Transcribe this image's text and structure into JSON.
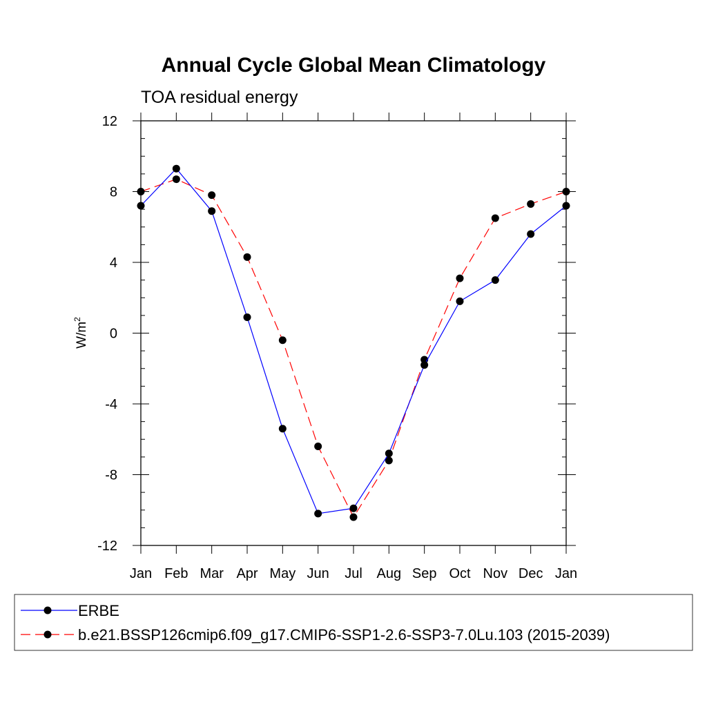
{
  "chart_data": {
    "type": "line",
    "title": "Annual Cycle Global Mean Climatology",
    "subtitle": "TOA residual energy",
    "ylabel": "W/m",
    "ylabel_sup": "2",
    "xlabel": "",
    "categories": [
      "Jan",
      "Feb",
      "Mar",
      "Apr",
      "May",
      "Jun",
      "Jul",
      "Aug",
      "Sep",
      "Oct",
      "Nov",
      "Dec",
      "Jan"
    ],
    "ylim": [
      -12,
      12
    ],
    "yticks": [
      -12,
      -8,
      -4,
      0,
      4,
      8,
      12
    ],
    "ytick_labels": [
      "-12",
      "-8",
      "-4",
      "0",
      "4",
      "8",
      "12"
    ],
    "grid": false,
    "legend_position": "bottom",
    "series": [
      {
        "name": "ERBE",
        "color": "#0000ff",
        "line_style": "solid",
        "marker": "filled-circle",
        "values": [
          7.2,
          9.3,
          6.9,
          0.9,
          -5.4,
          -10.2,
          -9.9,
          -6.8,
          -1.8,
          1.8,
          3.0,
          5.6,
          7.2
        ]
      },
      {
        "name": "b.e21.BSSP126cmip6.f09_g17.CMIP6-SSP1-2.6-SSP3-7.0Lu.103 (2015-2039)",
        "color": "#ff0000",
        "line_style": "dashed",
        "marker": "filled-circle",
        "values": [
          8.0,
          8.7,
          7.8,
          4.3,
          -0.4,
          -6.4,
          -10.4,
          -7.2,
          -1.5,
          3.1,
          6.5,
          7.3,
          8.0
        ]
      }
    ]
  }
}
